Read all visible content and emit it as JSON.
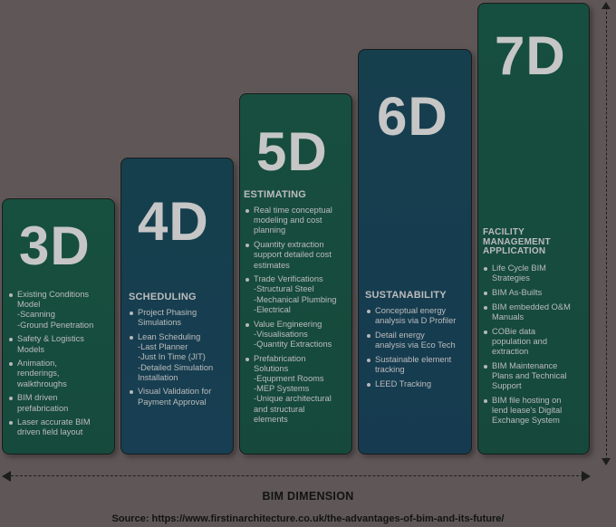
{
  "columns": [
    {
      "label": "3D",
      "category": "",
      "items": [
        [
          "Existing Conditions",
          "Model",
          "-Scanning",
          "-Ground Penetration"
        ],
        [
          "Safety & Logistics",
          "Models"
        ],
        [
          "Animation,",
          "renderings,",
          "walkthroughs"
        ],
        [
          "BIM driven",
          "prefabrication"
        ],
        [
          "Laser accurate BIM",
          "driven field layout"
        ]
      ]
    },
    {
      "label": "4D",
      "category": "SCHEDULING",
      "items": [
        [
          "Project Phasing",
          "Simulations"
        ],
        [
          "Lean Scheduling",
          "-Last Planner",
          "-Just In Time (JIT)",
          "-Detailed Simulation",
          "Installation"
        ],
        [
          "Visual Validation for",
          "Payment Approval"
        ]
      ]
    },
    {
      "label": "5D",
      "category": "ESTIMATING",
      "items": [
        [
          "Real time conceptual",
          "modeling and cost",
          "planning"
        ],
        [
          "Quantity extraction",
          "support detailed cost",
          "estimates"
        ],
        [
          "Trade Verifications",
          "-Structural Steel",
          "-Mechanical Plumbing",
          "-Electrical"
        ],
        [
          "Value Engineering",
          "-Visualisations",
          "-Quantity Extractions"
        ],
        [
          "Prefabrication",
          "Solutions",
          "-Equpment Rooms",
          "-MEP Systems",
          "-Unique architectural",
          "and structural",
          "elements"
        ]
      ]
    },
    {
      "label": "6D",
      "category": "SUSTANABILITY",
      "items": [
        [
          "Conceptual energy",
          "analysis via D Profiler"
        ],
        [
          "Detail energy",
          "analysis via Eco Tech"
        ],
        [
          "Sustainable element",
          "tracking"
        ],
        [
          "LEED Tracking"
        ]
      ]
    },
    {
      "label": "7D",
      "category": [
        "FACILITY",
        "MANAGEMENT",
        "APPLICATION"
      ],
      "items": [
        [
          "Life Cycle BIM",
          "Strategies"
        ],
        [
          "BIM As-Builts"
        ],
        [
          "BIM embedded O&M",
          "Manuals"
        ],
        [
          "COBie data",
          "population and",
          "extraction"
        ],
        [
          "BIM Maintenance",
          "Plans and Technical",
          "Support"
        ],
        [
          "BIM file hosting on",
          "lend lease's Digital",
          "Exchange System"
        ]
      ]
    }
  ],
  "axis_label": "BIM DIMENSION",
  "source": "Source: https://www.firstinarchitecture.co.uk/the-advantages-of-bim-and-its-future/"
}
